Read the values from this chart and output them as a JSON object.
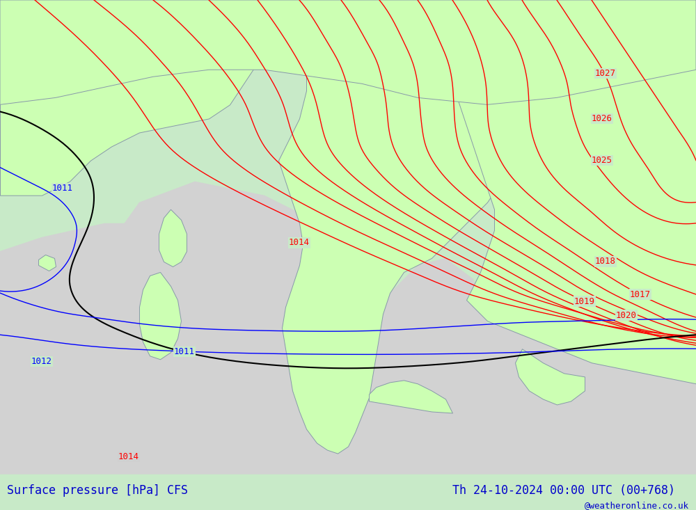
{
  "title_left": "Surface pressure [hPa] CFS",
  "title_right": "Th 24-10-2024 00:00 UTC (00+768)",
  "credit": "@weatheronline.co.uk",
  "title_color": "#0000cc",
  "credit_color": "#0000cc",
  "background_color": "#b3e6b3",
  "land_color": "#ccffcc",
  "sea_color": "#d0d0d0",
  "isobar_red_color": "#ff0000",
  "isobar_blue_color": "#0000ff",
  "isobar_black_color": "#000000",
  "contour_land_color": "#9999aa",
  "fig_width": 10.0,
  "fig_height": 7.33,
  "dpi": 100
}
